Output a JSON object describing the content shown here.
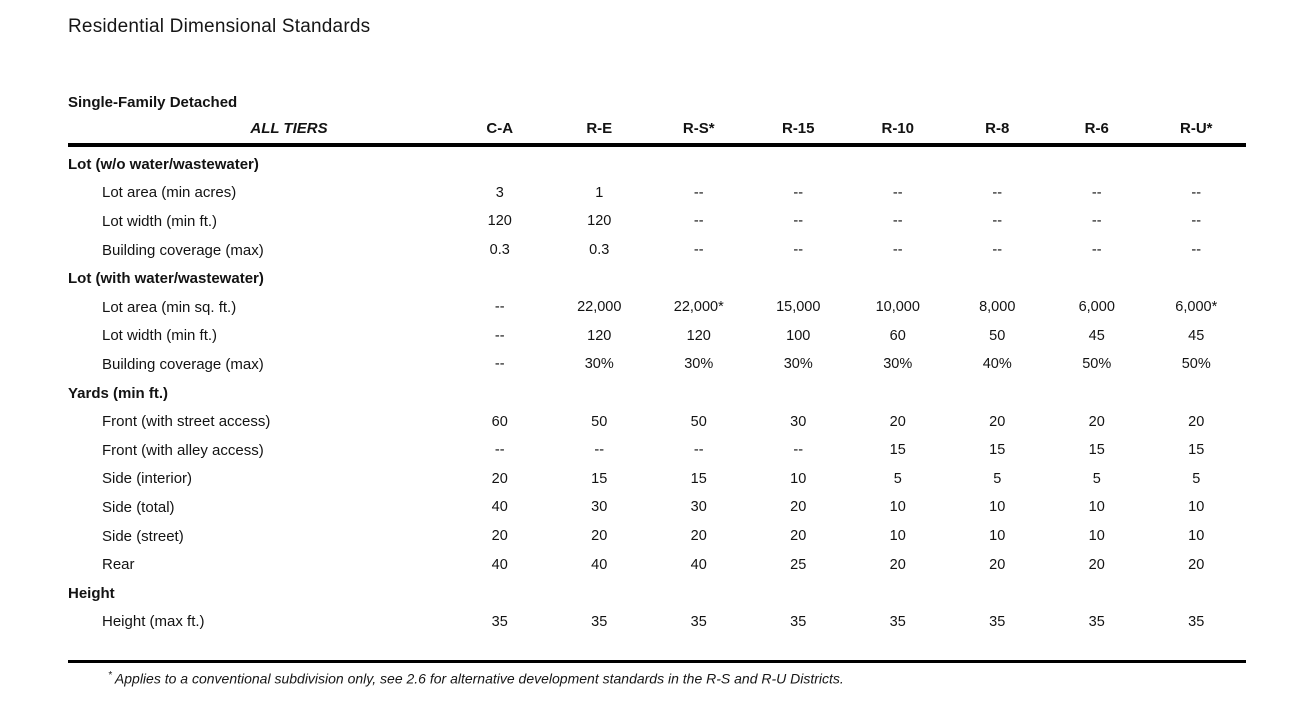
{
  "document": {
    "title": "Residential Dimensional Standards"
  },
  "table": {
    "caption": "Single-Family Detached",
    "header": {
      "tier_label": "ALL TIERS",
      "columns": [
        "C-A",
        "R-E",
        "R-S*",
        "R-15",
        "R-10",
        "R-8",
        "R-6",
        "R-U*"
      ]
    },
    "sections": [
      {
        "name": "Lot (w/o water/wastewater)",
        "rows": [
          {
            "label": "Lot area (min acres)",
            "values": [
              "3",
              "1",
              "--",
              "--",
              "--",
              "--",
              "--",
              "--"
            ]
          },
          {
            "label": "Lot width (min ft.)",
            "values": [
              "120",
              "120",
              "--",
              "--",
              "--",
              "--",
              "--",
              "--"
            ]
          },
          {
            "label": "Building coverage (max)",
            "values": [
              "0.3",
              "0.3",
              "--",
              "--",
              "--",
              "--",
              "--",
              "--"
            ]
          }
        ]
      },
      {
        "name": "Lot (with water/wastewater)",
        "rows": [
          {
            "label": "Lot area (min sq. ft.)",
            "values": [
              "--",
              "22,000",
              "22,000*",
              "15,000",
              "10,000",
              "8,000",
              "6,000",
              "6,000*"
            ]
          },
          {
            "label": "Lot width (min ft.)",
            "values": [
              "--",
              "120",
              "120",
              "100",
              "60",
              "50",
              "45",
              "45"
            ]
          },
          {
            "label": "Building coverage (max)",
            "values": [
              "--",
              "30%",
              "30%",
              "30%",
              "30%",
              "40%",
              "50%",
              "50%"
            ]
          }
        ]
      },
      {
        "name": "Yards (min ft.)",
        "rows": [
          {
            "label": "Front (with street access)",
            "values": [
              "60",
              "50",
              "50",
              "30",
              "20",
              "20",
              "20",
              "20"
            ]
          },
          {
            "label": "Front (with alley access)",
            "values": [
              "--",
              "--",
              "--",
              "--",
              "15",
              "15",
              "15",
              "15"
            ]
          },
          {
            "label": "Side (interior)",
            "values": [
              "20",
              "15",
              "15",
              "10",
              "5",
              "5",
              "5",
              "5"
            ]
          },
          {
            "label": "Side (total)",
            "values": [
              "40",
              "30",
              "30",
              "20",
              "10",
              "10",
              "10",
              "10"
            ]
          },
          {
            "label": "Side (street)",
            "values": [
              "20",
              "20",
              "20",
              "20",
              "10",
              "10",
              "10",
              "10"
            ]
          },
          {
            "label": "Rear",
            "values": [
              "40",
              "40",
              "40",
              "25",
              "20",
              "20",
              "20",
              "20"
            ]
          }
        ]
      },
      {
        "name": "Height",
        "rows": [
          {
            "label": "Height (max ft.)",
            "values": [
              "35",
              "35",
              "35",
              "35",
              "35",
              "35",
              "35",
              "35"
            ]
          }
        ]
      }
    ],
    "footnote": {
      "marker": "*",
      "text": "Applies to a conventional subdivision only, see 2.6 for alternative development standards in the R-S and R-U Districts."
    }
  },
  "colors": {
    "background": "#ffffff",
    "text": "#131313",
    "rule": "#000000"
  }
}
